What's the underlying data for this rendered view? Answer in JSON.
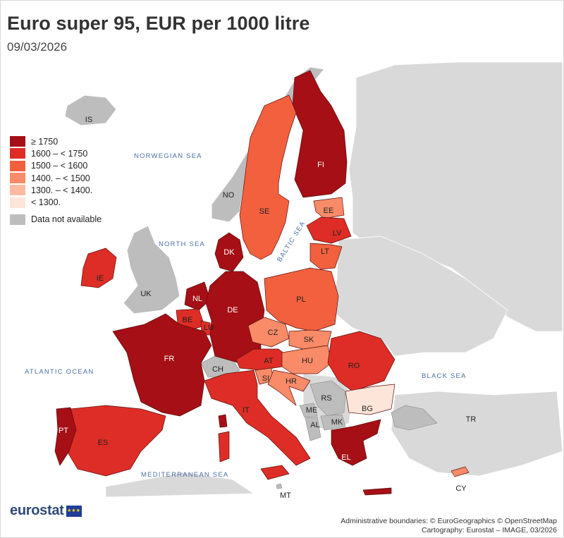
{
  "title": "Euro super 95, EUR per 1000 litre",
  "subtitle": "09/03/2026",
  "legend": {
    "classes": [
      {
        "label": "≥ 1750",
        "color": "#a50f15"
      },
      {
        "label": "1600 – < 1750",
        "color": "#de2d26"
      },
      {
        "label": "1500 – < 1600",
        "color": "#f2603e"
      },
      {
        "label": "1400. – < 1500",
        "color": "#f98b68"
      },
      {
        "label": "1300. – < 1400.",
        "color": "#fcbba1"
      },
      {
        "label": "< 1300.",
        "color": "#fee5d9"
      }
    ],
    "not_available": {
      "label": "Data not available",
      "color": "#bdbdbd"
    }
  },
  "sea_labels": {
    "norwegian": "NORWEGIAN SEA",
    "north": "NORTH SEA",
    "baltic": "BALTIC SEA",
    "atlantic": "ATLANTIC OCEAN",
    "black": "BLACK SEA",
    "mediterranean": "MEDITERRANEAN SEA"
  },
  "countries": [
    {
      "code": "FI",
      "class": 0
    },
    {
      "code": "SE",
      "class": 2
    },
    {
      "code": "NO",
      "class": null
    },
    {
      "code": "IS",
      "class": null
    },
    {
      "code": "EE",
      "class": 3
    },
    {
      "code": "LV",
      "class": 1
    },
    {
      "code": "LT",
      "class": 2
    },
    {
      "code": "DK",
      "class": 0
    },
    {
      "code": "IE",
      "class": 1
    },
    {
      "code": "UK",
      "class": null
    },
    {
      "code": "NL",
      "class": 0
    },
    {
      "code": "BE",
      "class": 1
    },
    {
      "code": "LU",
      "class": 1
    },
    {
      "code": "DE",
      "class": 0
    },
    {
      "code": "PL",
      "class": 2
    },
    {
      "code": "CZ",
      "class": 3
    },
    {
      "code": "SK",
      "class": 3
    },
    {
      "code": "AT",
      "class": 1
    },
    {
      "code": "HU",
      "class": 3
    },
    {
      "code": "RO",
      "class": 1
    },
    {
      "code": "FR",
      "class": 0
    },
    {
      "code": "CH",
      "class": null
    },
    {
      "code": "SI",
      "class": 3
    },
    {
      "code": "HR",
      "class": 3
    },
    {
      "code": "RS",
      "class": null
    },
    {
      "code": "BG",
      "class": 5
    },
    {
      "code": "ME",
      "class": null
    },
    {
      "code": "AL",
      "class": null
    },
    {
      "code": "MK",
      "class": null
    },
    {
      "code": "IT",
      "class": 1
    },
    {
      "code": "ES",
      "class": 1
    },
    {
      "code": "PT",
      "class": 0
    },
    {
      "code": "EL",
      "class": 0
    },
    {
      "code": "TR",
      "class": null
    },
    {
      "code": "CY",
      "class": 3
    },
    {
      "code": "MT",
      "class": null
    }
  ],
  "brand": "eurostat",
  "credits": {
    "line1": "Administrative boundaries: © EuroGeographics © OpenStreetMap",
    "line2": "Cartography: Eurostat – IMAGE, 03/2026"
  }
}
